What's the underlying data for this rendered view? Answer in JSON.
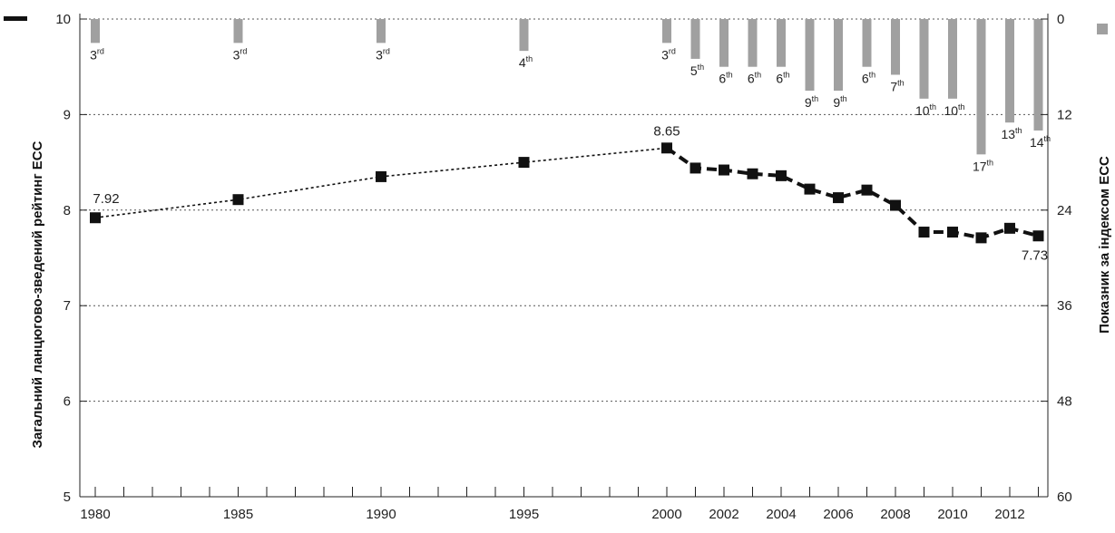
{
  "chart_data": {
    "type": "line",
    "ylabel_left": "Загальний ланцюгово-зведений рейтинг ECC",
    "ylabel_right": "Показник за індексом ECC",
    "x": [
      1980,
      1985,
      1990,
      1995,
      2000,
      2001,
      2002,
      2003,
      2004,
      2005,
      2006,
      2007,
      2008,
      2009,
      2010,
      2011,
      2012,
      2013
    ],
    "x_tick_labels": [
      "1980",
      "1985",
      "1990",
      "1995",
      "2000",
      "2002",
      "2004",
      "2006",
      "2008",
      "2010",
      "2012"
    ],
    "x_tick_values": [
      1980,
      1985,
      1990,
      1995,
      2000,
      2002,
      2004,
      2006,
      2008,
      2010,
      2012
    ],
    "ylim_left": [
      5,
      10
    ],
    "y_ticks_left": [
      "5",
      "6",
      "7",
      "8",
      "9",
      "10"
    ],
    "ylim_right": [
      0,
      60
    ],
    "y_ticks_right": [
      "0",
      "12",
      "24",
      "36",
      "48",
      "60"
    ],
    "grid": true,
    "series": [
      {
        "axis": "left",
        "values": [
          7.92,
          8.11,
          8.35,
          8.5,
          8.65,
          8.44,
          8.42,
          8.38,
          8.36,
          8.22,
          8.13,
          8.21,
          8.05,
          7.77,
          7.77,
          7.71,
          7.81,
          7.73
        ],
        "dashed_until": 2000
      },
      {
        "axis": "right",
        "type": "bar",
        "values": [
          3,
          3,
          3,
          4,
          3,
          5,
          6,
          6,
          6,
          9,
          9,
          6,
          7,
          10,
          10,
          17,
          13,
          14
        ],
        "rank_labels": [
          "3",
          "3",
          "3",
          "4",
          "3",
          "5",
          "6",
          "6",
          "6",
          "9",
          "9",
          "6",
          "7",
          "10",
          "10",
          "17",
          "13",
          "14"
        ],
        "rank_suffixes": [
          "rd",
          "rd",
          "rd",
          "th",
          "rd",
          "th",
          "th",
          "th",
          "th",
          "th",
          "th",
          "th",
          "th",
          "th",
          "th",
          "th",
          "th",
          "th"
        ]
      }
    ],
    "data_labels": [
      {
        "x": 1980,
        "text": "7.92"
      },
      {
        "x": 2000,
        "text": "8.65"
      },
      {
        "x": 2013,
        "text": "7.73"
      }
    ],
    "colors": {
      "line": "#111111",
      "marker": "#111111",
      "bar": "#a0a0a0",
      "grid": "#555555",
      "legend_line": "#111111",
      "legend_bar": "#a0a0a0"
    }
  }
}
